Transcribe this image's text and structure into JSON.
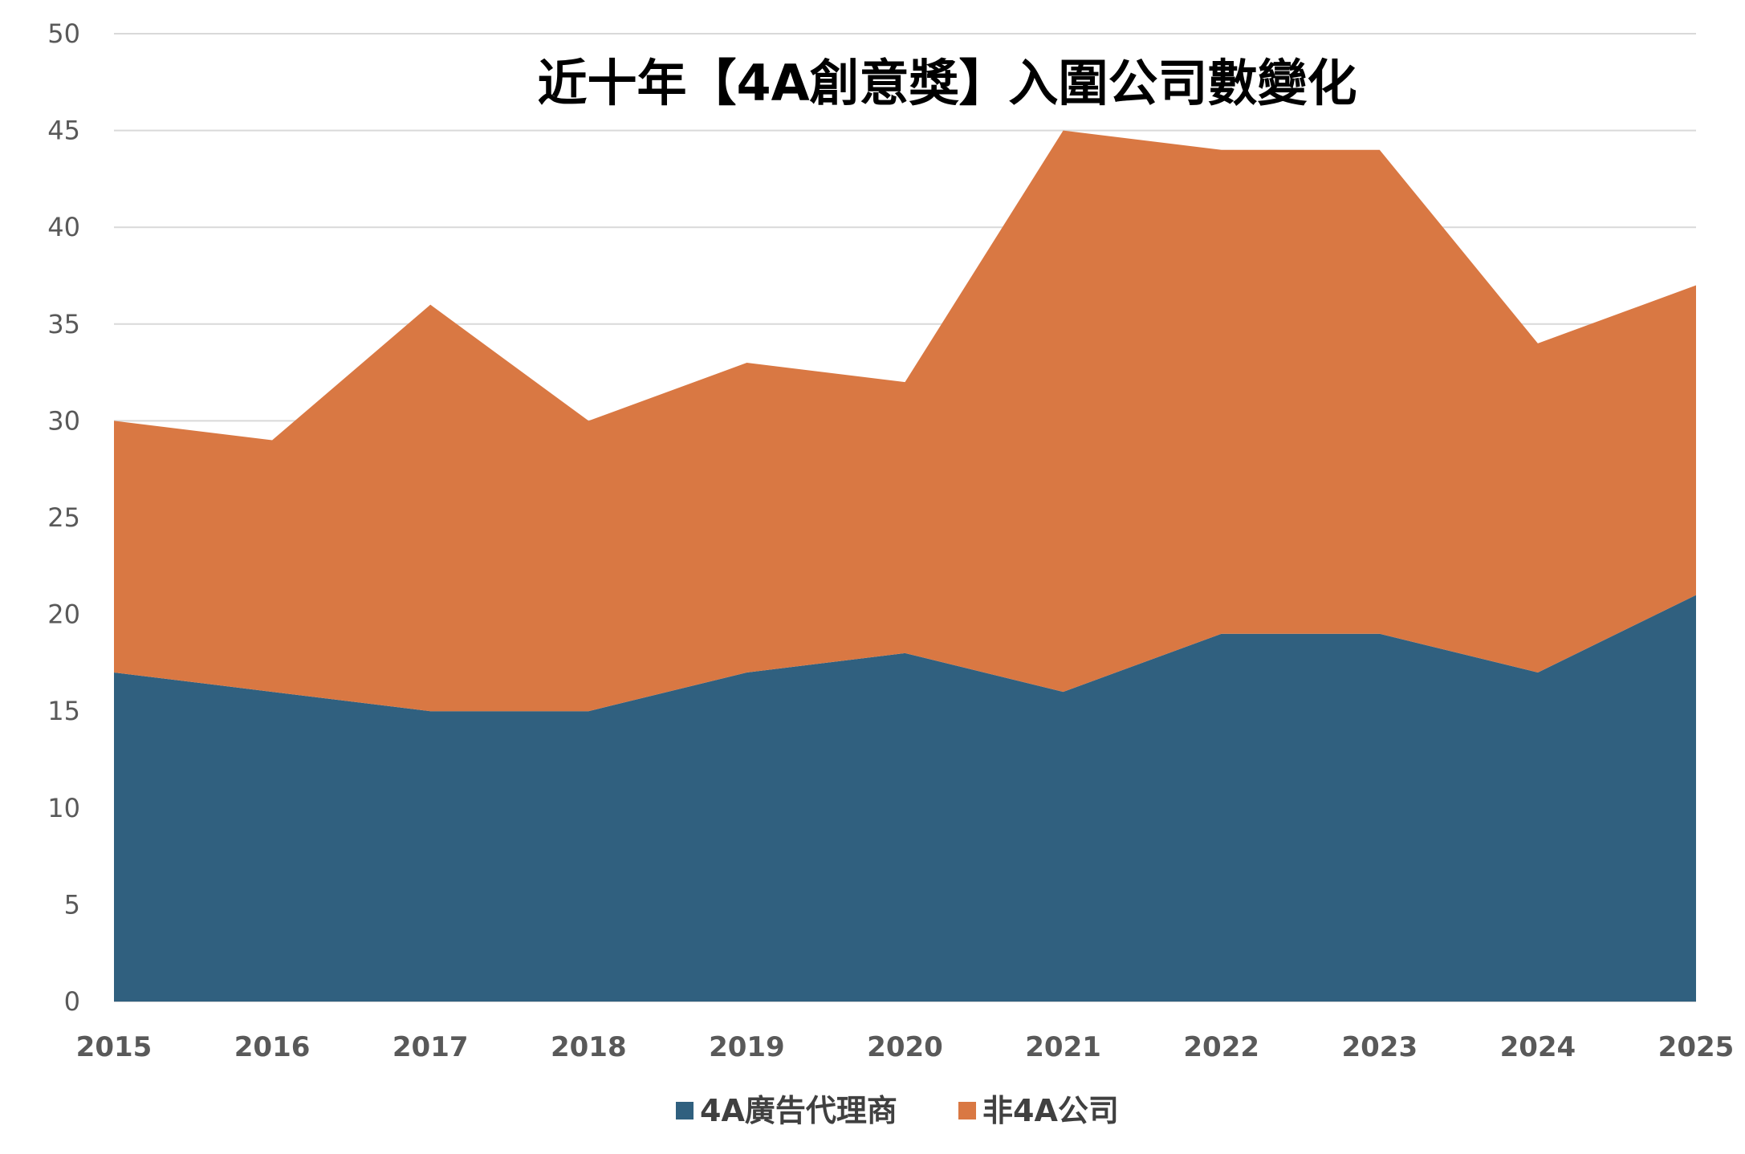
{
  "chart_data": {
    "type": "area",
    "stacked": true,
    "title": "近十年【4A創意獎】入圍公司數變化",
    "xlabel": "",
    "ylabel": "",
    "x": [
      "2015",
      "2016",
      "2017",
      "2018",
      "2019",
      "2020",
      "2021",
      "2022",
      "2023",
      "2024",
      "2025"
    ],
    "ylim": [
      0,
      50
    ],
    "yticks": [
      "0",
      "5",
      "10",
      "15",
      "20",
      "25",
      "30",
      "35",
      "40",
      "45",
      "50"
    ],
    "grid": true,
    "legend_position": "bottom",
    "series": [
      {
        "name": "4A廣告代理商",
        "color": "#30607f",
        "values": [
          17,
          16,
          15,
          15,
          17,
          18,
          16,
          19,
          19,
          17,
          21
        ]
      },
      {
        "name": "非4A公司",
        "color": "#d97843",
        "values": [
          13,
          13,
          21,
          15,
          16,
          14,
          29,
          25,
          25,
          17,
          16
        ]
      }
    ]
  }
}
